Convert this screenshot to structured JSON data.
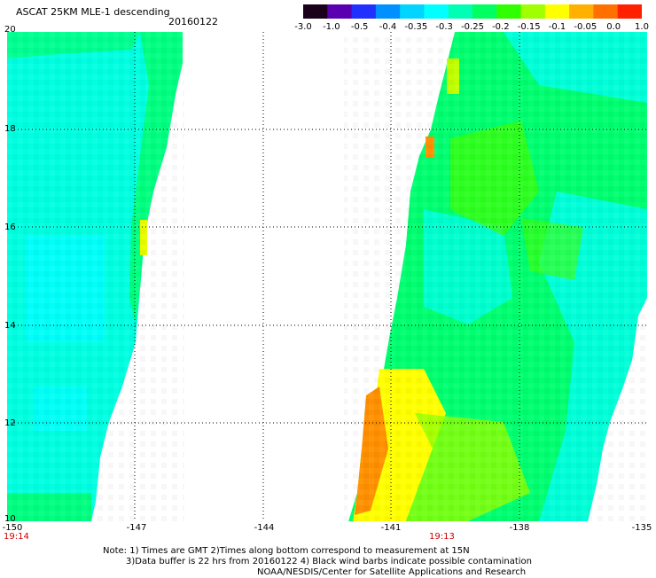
{
  "header": {
    "title": "ASCAT 25KM MLE-1 descending",
    "date": "20160122"
  },
  "colorbar": {
    "labels": [
      "-3.0",
      "-1.0",
      "-0.5",
      "-0.4",
      "-0.35",
      "-0.3",
      "-0.25",
      "-0.2",
      "-0.15",
      "-0.1",
      "-0.05",
      "0.0",
      "1.0"
    ],
    "colors": [
      "#1a001a",
      "#5a00b0",
      "#2030ff",
      "#0090ff",
      "#00d4ff",
      "#00ffff",
      "#00ffb4",
      "#00ff60",
      "#30ff00",
      "#a0ff00",
      "#ffff00",
      "#ffb000",
      "#ff7000",
      "#ff2000"
    ]
  },
  "map": {
    "lon_range": [
      -150,
      -135
    ],
    "lat_range": [
      10,
      20
    ],
    "lat_labels": [
      "20",
      "18",
      "16",
      "14",
      "12",
      "10"
    ],
    "lon_labels": [
      "-150",
      "-147",
      "-144",
      "-141",
      "-138",
      "-135"
    ],
    "time_labels": [
      "19:14",
      "19:13"
    ],
    "colors": {
      "cyan": "#00ffff",
      "aqua": "#00ffd0",
      "green": "#00ff70",
      "bright_green": "#20ff00",
      "yellow": "#ffff00",
      "orange": "#ff9000"
    }
  },
  "notes": {
    "line1": "Note: 1) Times are GMT 2)Times along bottom correspond to measurement at 15N",
    "line2": "3)Data buffer is 22 hrs from 20160122 4) Black wind barbs indicate possible contamination",
    "line3": "NOAA/NESDIS/Center for Satellite Applications and Research"
  }
}
